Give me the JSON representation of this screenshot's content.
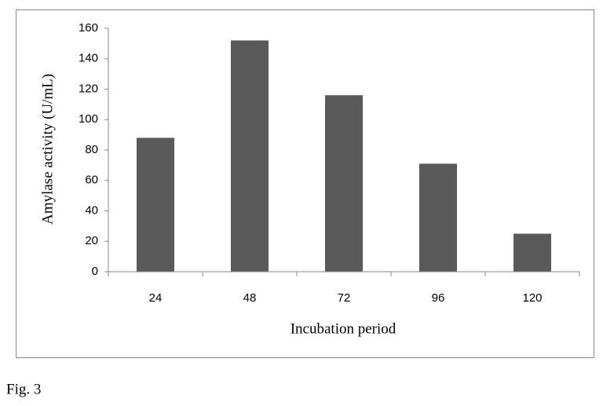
{
  "chart_data": {
    "type": "bar",
    "x_label": "Incubation period",
    "y_label": "Amylase activity (U/mL)",
    "categories": [
      "24",
      "48",
      "72",
      "96",
      "120"
    ],
    "values": [
      88,
      152,
      116,
      71,
      25
    ],
    "color": "#595959",
    "ylim": [
      0,
      160
    ],
    "yticks": [
      0,
      20,
      40,
      60,
      80,
      100,
      120,
      140,
      160
    ],
    "grid": false
  },
  "caption": "Fig. 3"
}
